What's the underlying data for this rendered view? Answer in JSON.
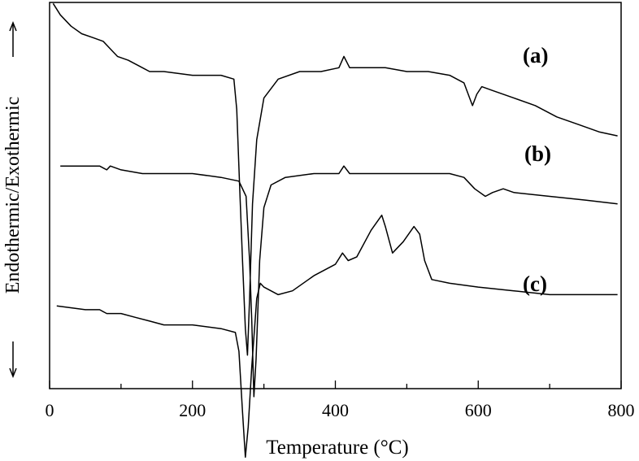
{
  "chart_data": {
    "type": "line",
    "title": "",
    "xlabel": "Temperature (°C)",
    "ylabel": "Endothermic/Exothermic",
    "xlim": [
      0,
      800
    ],
    "x_ticks": [
      0,
      200,
      400,
      600,
      800
    ],
    "x_minor_ticks": [
      100,
      300,
      500,
      700
    ],
    "y_ticks_shown": false,
    "grid": false,
    "legend": "none",
    "series": [
      {
        "name": "(a)",
        "points": [
          [
            5,
            0.98
          ],
          [
            15,
            0.95
          ],
          [
            30,
            0.92
          ],
          [
            45,
            0.9
          ],
          [
            60,
            0.89
          ],
          [
            75,
            0.88
          ],
          [
            85,
            0.86
          ],
          [
            95,
            0.84
          ],
          [
            110,
            0.83
          ],
          [
            130,
            0.81
          ],
          [
            140,
            0.8
          ],
          [
            160,
            0.8
          ],
          [
            200,
            0.79
          ],
          [
            240,
            0.79
          ],
          [
            258,
            0.78
          ],
          [
            262,
            0.7
          ],
          [
            266,
            0.5
          ],
          [
            270,
            0.3
          ],
          [
            274,
            0.12
          ],
          [
            277,
            0.05
          ],
          [
            280,
            0.2
          ],
          [
            284,
            0.45
          ],
          [
            290,
            0.62
          ],
          [
            300,
            0.73
          ],
          [
            320,
            0.78
          ],
          [
            350,
            0.8
          ],
          [
            380,
            0.8
          ],
          [
            405,
            0.81
          ],
          [
            412,
            0.84
          ],
          [
            420,
            0.81
          ],
          [
            440,
            0.81
          ],
          [
            470,
            0.81
          ],
          [
            500,
            0.8
          ],
          [
            530,
            0.8
          ],
          [
            560,
            0.79
          ],
          [
            580,
            0.77
          ],
          [
            588,
            0.73
          ],
          [
            592,
            0.71
          ],
          [
            598,
            0.74
          ],
          [
            605,
            0.76
          ],
          [
            620,
            0.75
          ],
          [
            650,
            0.73
          ],
          [
            680,
            0.71
          ],
          [
            710,
            0.68
          ],
          [
            740,
            0.66
          ],
          [
            770,
            0.64
          ],
          [
            795,
            0.63
          ]
        ]
      },
      {
        "name": "(b)",
        "points": [
          [
            15,
            0.55
          ],
          [
            50,
            0.55
          ],
          [
            70,
            0.55
          ],
          [
            80,
            0.54
          ],
          [
            85,
            0.55
          ],
          [
            100,
            0.54
          ],
          [
            130,
            0.53
          ],
          [
            150,
            0.53
          ],
          [
            170,
            0.53
          ],
          [
            200,
            0.53
          ],
          [
            240,
            0.52
          ],
          [
            265,
            0.51
          ],
          [
            275,
            0.47
          ],
          [
            280,
            0.3
          ],
          [
            283,
            0.14
          ],
          [
            286,
            -0.06
          ],
          [
            289,
            0.04
          ],
          [
            294,
            0.3
          ],
          [
            300,
            0.44
          ],
          [
            310,
            0.5
          ],
          [
            330,
            0.52
          ],
          [
            370,
            0.53
          ],
          [
            405,
            0.53
          ],
          [
            412,
            0.55
          ],
          [
            420,
            0.53
          ],
          [
            460,
            0.53
          ],
          [
            500,
            0.53
          ],
          [
            560,
            0.53
          ],
          [
            580,
            0.52
          ],
          [
            595,
            0.49
          ],
          [
            610,
            0.47
          ],
          [
            620,
            0.48
          ],
          [
            635,
            0.49
          ],
          [
            650,
            0.48
          ],
          [
            700,
            0.47
          ],
          [
            750,
            0.46
          ],
          [
            795,
            0.45
          ]
        ]
      },
      {
        "name": "(c)",
        "points": [
          [
            10,
            0.18
          ],
          [
            50,
            0.17
          ],
          [
            70,
            0.17
          ],
          [
            80,
            0.16
          ],
          [
            100,
            0.16
          ],
          [
            120,
            0.15
          ],
          [
            140,
            0.14
          ],
          [
            160,
            0.13
          ],
          [
            200,
            0.13
          ],
          [
            240,
            0.12
          ],
          [
            260,
            0.11
          ],
          [
            265,
            0.06
          ],
          [
            270,
            -0.1
          ],
          [
            274,
            -0.22
          ],
          [
            278,
            -0.14
          ],
          [
            283,
            0.02
          ],
          [
            290,
            0.2
          ],
          [
            295,
            0.24
          ],
          [
            300,
            0.23
          ],
          [
            320,
            0.21
          ],
          [
            340,
            0.22
          ],
          [
            370,
            0.26
          ],
          [
            400,
            0.29
          ],
          [
            410,
            0.32
          ],
          [
            418,
            0.3
          ],
          [
            430,
            0.31
          ],
          [
            450,
            0.38
          ],
          [
            465,
            0.42
          ],
          [
            470,
            0.39
          ],
          [
            480,
            0.32
          ],
          [
            495,
            0.35
          ],
          [
            510,
            0.39
          ],
          [
            518,
            0.37
          ],
          [
            525,
            0.3
          ],
          [
            535,
            0.25
          ],
          [
            560,
            0.24
          ],
          [
            600,
            0.23
          ],
          [
            650,
            0.22
          ],
          [
            700,
            0.21
          ],
          [
            760,
            0.21
          ],
          [
            795,
            0.21
          ]
        ]
      }
    ]
  }
}
